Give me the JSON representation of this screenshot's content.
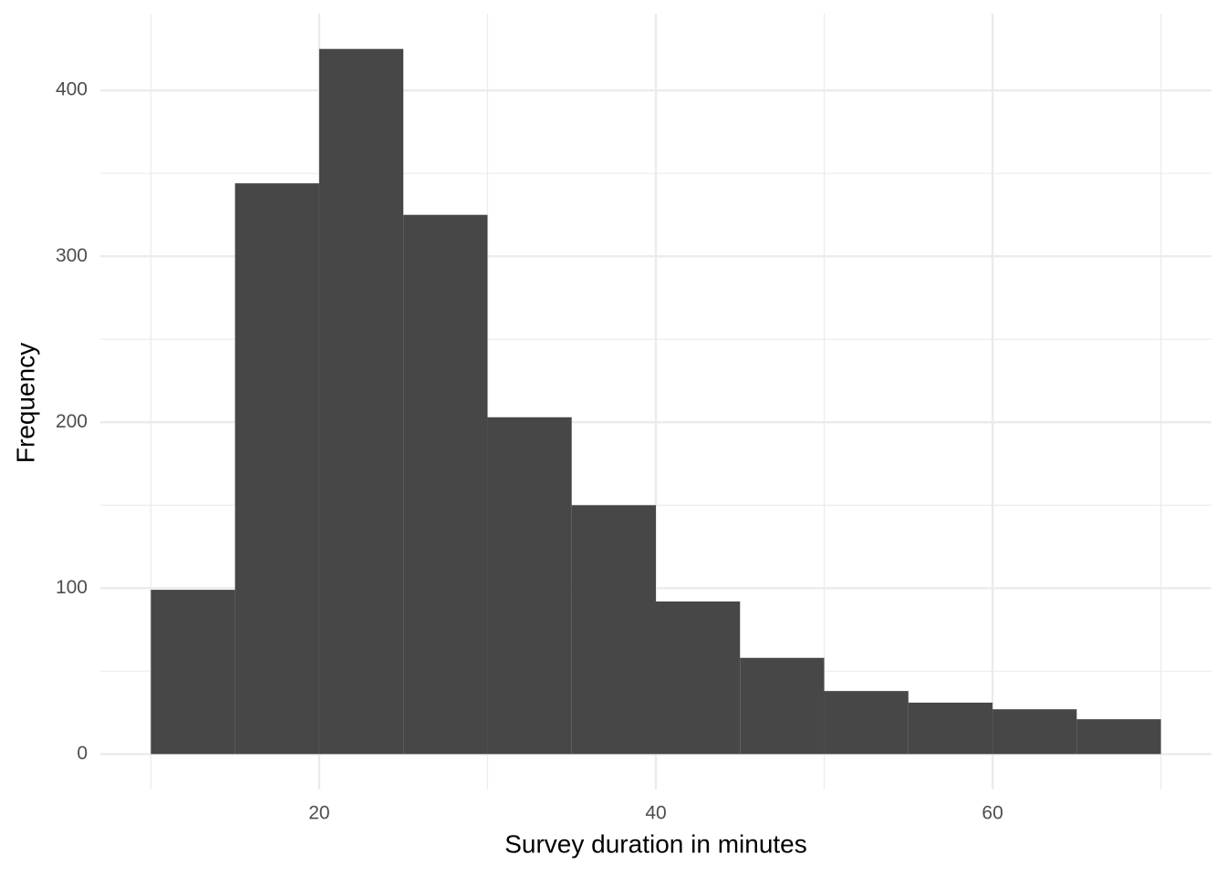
{
  "chart_data": {
    "type": "histogram",
    "x_label": "Survey duration in minutes",
    "y_label": "Frequency",
    "bins": [
      10,
      15,
      20,
      25,
      30,
      35,
      40,
      45,
      50,
      55,
      60,
      65,
      70
    ],
    "values": [
      99,
      344,
      425,
      325,
      203,
      150,
      92,
      58,
      38,
      31,
      27,
      21
    ],
    "color": "#474747",
    "xlim": [
      7,
      73
    ],
    "xticks": [
      20,
      40,
      60
    ],
    "xminor": [
      10,
      30,
      50,
      70
    ],
    "ylim": [
      -21.25,
      446.25
    ],
    "yticks": [
      0,
      100,
      200,
      300,
      400
    ],
    "yminor": [
      50,
      150,
      250,
      350
    ],
    "grid": true
  }
}
